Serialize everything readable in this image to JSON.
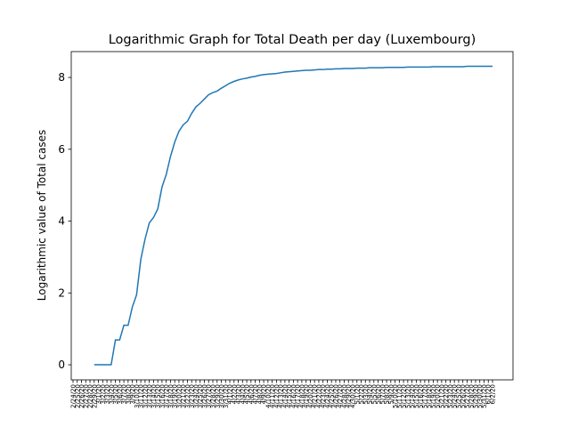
{
  "chart_data": {
    "type": "line",
    "title": "Logarithmic Graph for Total Death per day (Luxembourg)",
    "y_label": "Logarithmic value of Total cases",
    "categories": [
      "2/24/20",
      "2/25/20",
      "2/26/20",
      "2/27/20",
      "2/28/20",
      "2/29/20",
      "3/1/20",
      "3/2/20",
      "3/3/20",
      "3/4/20",
      "3/5/20",
      "3/6/20",
      "3/7/20",
      "3/8/20",
      "3/9/20",
      "3/10/20",
      "3/11/20",
      "3/12/20",
      "3/13/20",
      "3/14/20",
      "3/15/20",
      "3/16/20",
      "3/17/20",
      "3/18/20",
      "3/19/20",
      "3/20/20",
      "3/21/20",
      "3/22/20",
      "3/23/20",
      "3/24/20",
      "3/25/20",
      "3/26/20",
      "3/27/20",
      "3/28/20",
      "3/29/20",
      "3/30/20",
      "3/31/20",
      "4/1/20",
      "4/2/20",
      "4/3/20",
      "4/4/20",
      "4/5/20",
      "4/6/20",
      "4/7/20",
      "4/8/20",
      "4/9/20",
      "4/10/20",
      "4/11/20",
      "4/12/20",
      "4/13/20",
      "4/14/20",
      "4/15/20",
      "4/16/20",
      "4/17/20",
      "4/18/20",
      "4/19/20",
      "4/20/20",
      "4/21/20",
      "4/22/20",
      "4/23/20",
      "4/24/20",
      "4/25/20",
      "4/26/20",
      "4/27/20",
      "4/28/20",
      "4/29/20",
      "4/30/20",
      "5/1/20",
      "5/2/20",
      "5/3/20",
      "5/4/20",
      "5/5/20",
      "5/6/20",
      "5/7/20",
      "5/8/20",
      "5/9/20",
      "5/10/20",
      "5/11/20",
      "5/12/20",
      "5/13/20",
      "5/14/20",
      "5/15/20",
      "5/16/20",
      "5/17/20",
      "5/18/20",
      "5/19/20",
      "5/20/20",
      "5/21/20",
      "5/22/20",
      "5/23/20",
      "5/24/20",
      "5/25/20",
      "5/26/20",
      "5/27/20",
      "5/28/20",
      "5/29/20",
      "5/30/20",
      "5/31/20",
      "6/1/20",
      "6/2/20"
    ],
    "series": [
      {
        "name": "Luxembourg",
        "color": "#1f77b4",
        "values": [
          null,
          null,
          null,
          null,
          null,
          0,
          0,
          0,
          0,
          0,
          0.69,
          0.69,
          1.1,
          1.1,
          1.61,
          1.95,
          2.94,
          3.5,
          3.95,
          4.1,
          4.34,
          4.95,
          5.3,
          5.8,
          6.2,
          6.5,
          6.68,
          6.78,
          7.0,
          7.18,
          7.28,
          7.4,
          7.52,
          7.58,
          7.62,
          7.7,
          7.77,
          7.84,
          7.89,
          7.93,
          7.96,
          7.98,
          8.01,
          8.03,
          8.06,
          8.08,
          8.09,
          8.1,
          8.11,
          8.13,
          8.15,
          8.16,
          8.17,
          8.18,
          8.19,
          8.2,
          8.2,
          8.21,
          8.22,
          8.22,
          8.23,
          8.23,
          8.24,
          8.24,
          8.25,
          8.25,
          8.25,
          8.26,
          8.26,
          8.26,
          8.27,
          8.27,
          8.27,
          8.27,
          8.28,
          8.28,
          8.28,
          8.28,
          8.28,
          8.29,
          8.29,
          8.29,
          8.29,
          8.29,
          8.29,
          8.3,
          8.3,
          8.3,
          8.3,
          8.3,
          8.3,
          8.3,
          8.3,
          8.31,
          8.31,
          8.31,
          8.31,
          8.31,
          8.31,
          8.31
        ]
      }
    ],
    "ylim": [
      -0.42,
      8.72
    ],
    "yticks": [
      0,
      2,
      4,
      6,
      8
    ],
    "grid": false,
    "legend": false
  }
}
